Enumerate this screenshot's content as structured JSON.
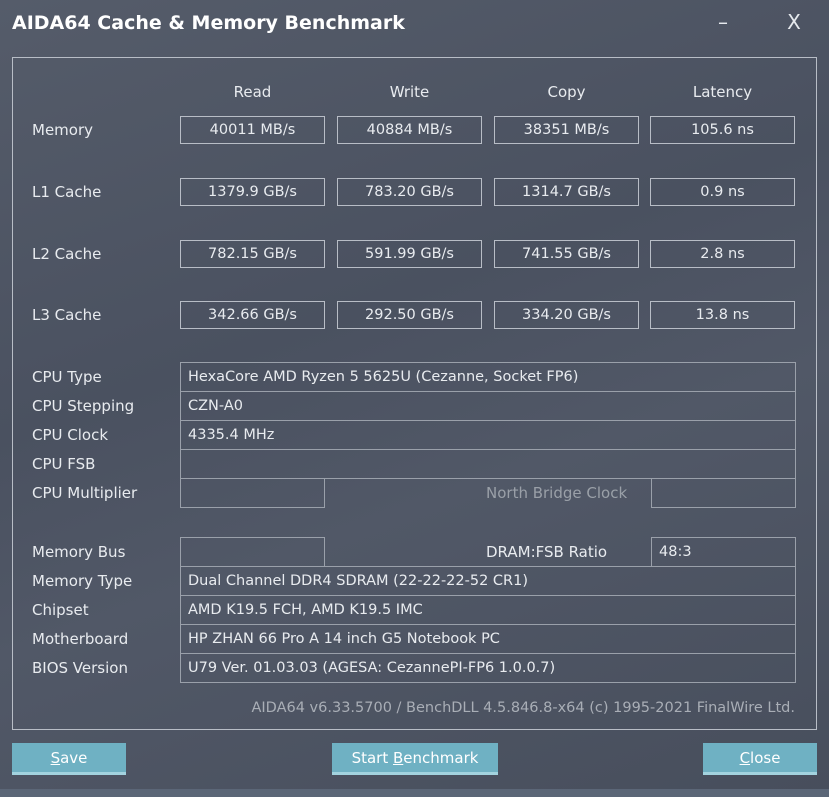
{
  "window": {
    "title": "AIDA64 Cache & Memory Benchmark",
    "minimize": "–",
    "close": "X"
  },
  "columns": [
    "Read",
    "Write",
    "Copy",
    "Latency"
  ],
  "bench": [
    {
      "label": "Memory",
      "values": [
        "40011 MB/s",
        "40884 MB/s",
        "38351 MB/s",
        "105.6 ns"
      ]
    },
    {
      "label": "L1 Cache",
      "values": [
        "1379.9 GB/s",
        "783.20 GB/s",
        "1314.7 GB/s",
        "0.9 ns"
      ]
    },
    {
      "label": "L2 Cache",
      "values": [
        "782.15 GB/s",
        "591.99 GB/s",
        "741.55 GB/s",
        "2.8 ns"
      ]
    },
    {
      "label": "L3 Cache",
      "values": [
        "342.66 GB/s",
        "292.50 GB/s",
        "334.20 GB/s",
        "13.8 ns"
      ]
    }
  ],
  "info": {
    "cpu_type": {
      "label": "CPU Type",
      "value": "HexaCore AMD Ryzen 5 5625U  (Cezanne, Socket FP6)"
    },
    "cpu_stepping": {
      "label": "CPU Stepping",
      "value": "CZN-A0"
    },
    "cpu_clock": {
      "label": "CPU Clock",
      "value": "4335.4 MHz"
    },
    "cpu_fsb": {
      "label": "CPU FSB",
      "value": ""
    },
    "cpu_multiplier": {
      "label": "CPU Multiplier",
      "value": "",
      "nb_label": "North Bridge Clock",
      "nb_value": ""
    },
    "memory_bus": {
      "label": "Memory Bus",
      "value": "",
      "ratio_label": "DRAM:FSB Ratio",
      "ratio_value": "48:3"
    },
    "memory_type": {
      "label": "Memory Type",
      "value": "Dual Channel DDR4 SDRAM  (22-22-22-52 CR1)"
    },
    "chipset": {
      "label": "Chipset",
      "value": "AMD K19.5 FCH, AMD K19.5 IMC"
    },
    "motherboard": {
      "label": "Motherboard",
      "value": "HP ZHAN 66 Pro A 14 inch G5 Notebook PC"
    },
    "bios": {
      "label": "BIOS Version",
      "value": "U79 Ver. 01.03.03  (AGESA: CezannePI-FP6 1.0.0.7)"
    }
  },
  "footer": "AIDA64 v6.33.5700 / BenchDLL 4.5.846.8-x64  (c) 1995-2021 FinalWire Ltd.",
  "buttons": {
    "save_key": "S",
    "save_rest": "ave",
    "start_pre": "Start ",
    "start_key": "B",
    "start_rest": "enchmark",
    "close_key": "C",
    "close_rest": "lose"
  },
  "colors": {
    "background": "#4b5261",
    "button": "#6fb1c3"
  }
}
